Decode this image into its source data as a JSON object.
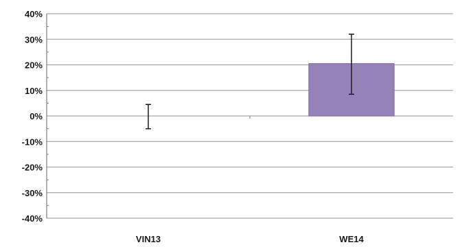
{
  "chart_data": {
    "type": "bar",
    "title": "",
    "xlabel": "",
    "ylabel": "",
    "categories": [
      "VIN13",
      "WE14"
    ],
    "values": [
      0,
      20.5
    ],
    "error_bars": [
      {
        "low": -5,
        "high": 4.5
      },
      {
        "low": 8.5,
        "high": 32
      }
    ],
    "ylim": [
      -40,
      40
    ],
    "yticks": [
      40,
      30,
      20,
      10,
      0,
      -10,
      -20,
      -30,
      -40
    ],
    "ytick_labels": [
      "40%",
      "30%",
      "20%",
      "10%",
      "0%",
      "-10%",
      "-20%",
      "-30%",
      "-40%"
    ],
    "grid": true,
    "legend": false,
    "colors": {
      "bar": "#9482b8",
      "bar_border": "#7e6aa6",
      "grid": "#a8a8a8",
      "axis": "#808080",
      "error_bar": "#1a1a1a"
    }
  }
}
